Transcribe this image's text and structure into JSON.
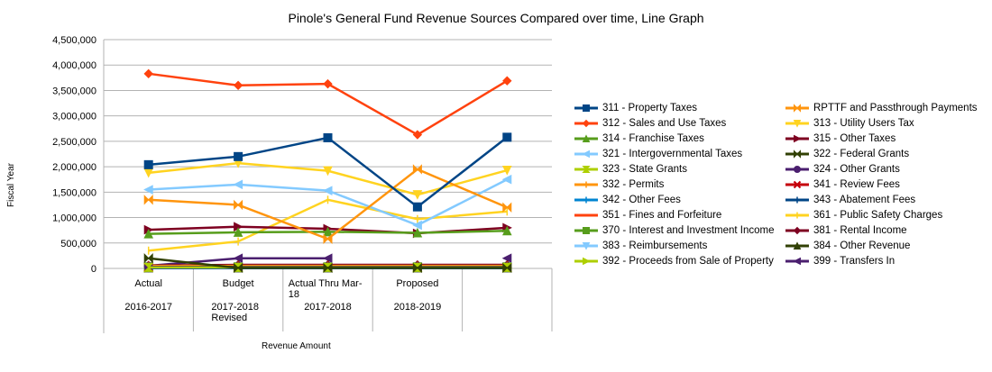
{
  "chart_data": {
    "type": "line",
    "title": "Pinole's General Fund Revenue Sources Compared over time, Line Graph",
    "xlabel": "Revenue Amount",
    "ylabel": "Fiscal Year",
    "ylim": [
      0,
      4500000
    ],
    "yticks": [
      "0",
      "500,000",
      "1,000,000",
      "1,500,000",
      "2,000,000",
      "2,500,000",
      "3,000,000",
      "3,500,000",
      "4,000,000",
      "4,500,000"
    ],
    "categories": [
      {
        "line1": "Actual",
        "line2": "2016-2017"
      },
      {
        "line1": "Budget",
        "line2": "2017-2018 Revised"
      },
      {
        "line1": "Actual Thru Mar-18",
        "line2": "2017-2018"
      },
      {
        "line1": "Proposed",
        "line2": "2018-2019"
      },
      {
        "line1": "",
        "line2": ""
      }
    ],
    "grid": true,
    "legend_position": "right",
    "series": [
      {
        "name": "311 - Property Taxes",
        "color": "#004586",
        "marker": "square",
        "values": [
          2040000,
          2200000,
          2570000,
          1210000,
          2580000
        ]
      },
      {
        "name": "RPTTF and Passthrough Payments",
        "color": "#ff950e",
        "marker": "bowtie",
        "values": [
          1350000,
          1250000,
          580000,
          1950000,
          1200000
        ]
      },
      {
        "name": "312 - Sales and Use Taxes",
        "color": "#ff420e",
        "marker": "diamond",
        "values": [
          3830000,
          3600000,
          3630000,
          2630000,
          3690000
        ]
      },
      {
        "name": "313 - Utility Users Tax",
        "color": "#ffd320",
        "marker": "tri-down",
        "values": [
          1880000,
          2070000,
          1920000,
          1450000,
          1930000
        ]
      },
      {
        "name": "314 - Franchise Taxes",
        "color": "#579d1c",
        "marker": "tri-up",
        "values": [
          680000,
          710000,
          720000,
          700000,
          740000
        ]
      },
      {
        "name": "315 - Other Taxes",
        "color": "#7e0021",
        "marker": "tri-right",
        "values": [
          760000,
          820000,
          780000,
          690000,
          800000
        ]
      },
      {
        "name": "321 - Intergovernmental Taxes",
        "color": "#83caff",
        "marker": "tri-left",
        "values": [
          1550000,
          1650000,
          1530000,
          850000,
          1750000
        ]
      },
      {
        "name": "322 - Federal Grants",
        "color": "#314004",
        "marker": "bowtie",
        "values": [
          200000,
          10000,
          10000,
          10000,
          10000
        ]
      },
      {
        "name": "323 - State Grants",
        "color": "#aecf00",
        "marker": "hourglass",
        "values": [
          20000,
          20000,
          20000,
          20000,
          20000
        ]
      },
      {
        "name": "324 - Other Grants",
        "color": "#4b1f6f",
        "marker": "circle",
        "values": [
          30000,
          30000,
          30000,
          30000,
          30000
        ]
      },
      {
        "name": "332 - Permits",
        "color": "#ff950e",
        "marker": "plus",
        "values": [
          50000,
          50000,
          50000,
          50000,
          50000
        ]
      },
      {
        "name": "341 - Review Fees",
        "color": "#c5000b",
        "marker": "x",
        "values": [
          20000,
          20000,
          20000,
          20000,
          20000
        ]
      },
      {
        "name": "342 - Other Fees",
        "color": "#0084d1",
        "marker": "plus",
        "values": [
          10000,
          10000,
          10000,
          10000,
          10000
        ]
      },
      {
        "name": "343 - Abatement Fees",
        "color": "#004586",
        "marker": "plus",
        "values": [
          5000,
          5000,
          5000,
          5000,
          5000
        ]
      },
      {
        "name": "351 - Fines and Forfeiture",
        "color": "#ff420e",
        "marker": "none",
        "values": [
          40000,
          40000,
          40000,
          40000,
          40000
        ]
      },
      {
        "name": "361 - Public Safety Charges",
        "color": "#ffd320",
        "marker": "plus",
        "values": [
          350000,
          530000,
          1350000,
          970000,
          1120000
        ]
      },
      {
        "name": "370 - Interest and Investment Income",
        "color": "#579d1c",
        "marker": "square",
        "values": [
          30000,
          30000,
          30000,
          30000,
          30000
        ]
      },
      {
        "name": "381 - Rental Income",
        "color": "#7e0021",
        "marker": "diamond",
        "values": [
          60000,
          70000,
          70000,
          70000,
          70000
        ]
      },
      {
        "name": "383 - Reimbursements",
        "color": "#83caff",
        "marker": "tri-down",
        "values": [
          30000,
          30000,
          30000,
          30000,
          30000
        ]
      },
      {
        "name": "384 - Other Revenue",
        "color": "#314004",
        "marker": "tri-up",
        "values": [
          10000,
          10000,
          10000,
          10000,
          10000
        ]
      },
      {
        "name": "392 - Proceeds from Sale of Property",
        "color": "#aecf00",
        "marker": "tri-right",
        "values": [
          10000,
          10000,
          10000,
          10000,
          10000
        ]
      },
      {
        "name": "399 - Transfers In",
        "color": "#4b1f6f",
        "marker": "tri-left",
        "values": [
          50000,
          200000,
          200000,
          null,
          200000
        ]
      }
    ]
  }
}
